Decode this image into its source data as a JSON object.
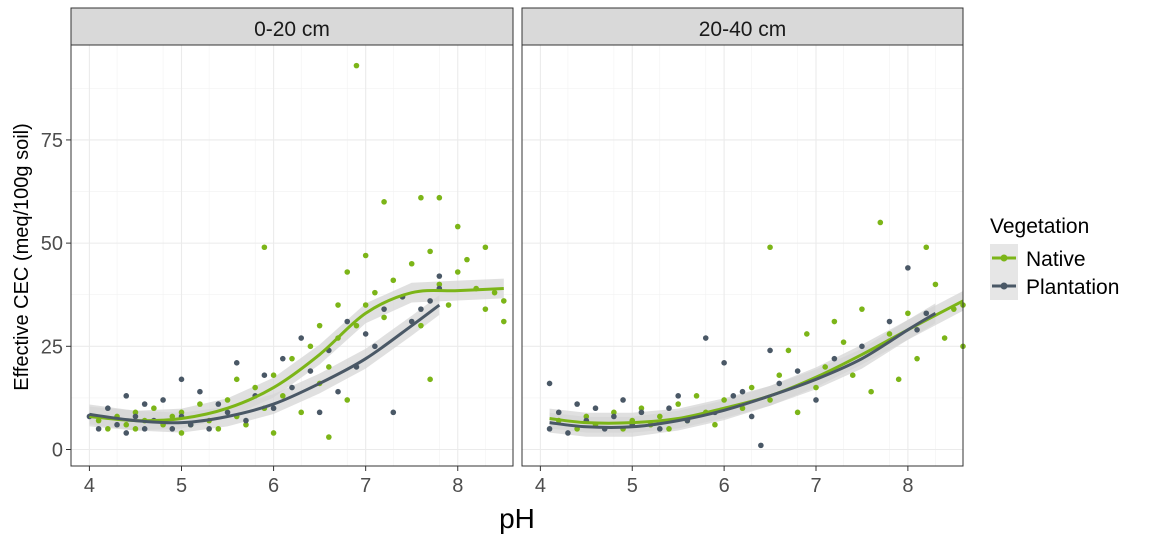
{
  "chart_data": {
    "type": "scatter",
    "xlabel": "pH",
    "ylabel": "Effective CEC (meq/100g soil)",
    "xlim": [
      3.8,
      8.6
    ],
    "ylim": [
      -4,
      98
    ],
    "x_ticks": [
      4,
      5,
      6,
      7,
      8
    ],
    "y_ticks": [
      0,
      25,
      50,
      75
    ],
    "grid": true,
    "legend": {
      "title": "Vegetation",
      "position": "right",
      "entries": [
        "Native",
        "Plantation"
      ]
    },
    "colors": {
      "Native": "#7cb518",
      "Plantation": "#4a5866",
      "band": "#d6d6d6"
    },
    "panels": [
      {
        "strip": "0-20 cm",
        "series": [
          {
            "name": "Native",
            "points": [
              [
                4.1,
                7
              ],
              [
                4.2,
                5
              ],
              [
                4.3,
                8
              ],
              [
                4.4,
                6
              ],
              [
                4.5,
                9
              ],
              [
                4.5,
                5
              ],
              [
                4.6,
                7
              ],
              [
                4.7,
                10
              ],
              [
                4.8,
                6
              ],
              [
                4.9,
                8
              ],
              [
                5.0,
                4
              ],
              [
                5.0,
                9
              ],
              [
                5.1,
                6
              ],
              [
                5.2,
                11
              ],
              [
                5.3,
                7
              ],
              [
                5.4,
                5
              ],
              [
                5.5,
                12
              ],
              [
                5.6,
                8
              ],
              [
                5.6,
                17
              ],
              [
                5.7,
                6
              ],
              [
                5.8,
                15
              ],
              [
                5.9,
                49
              ],
              [
                5.9,
                10
              ],
              [
                6.0,
                4
              ],
              [
                6.0,
                18
              ],
              [
                6.1,
                13
              ],
              [
                6.2,
                22
              ],
              [
                6.3,
                9
              ],
              [
                6.4,
                25
              ],
              [
                6.5,
                16
              ],
              [
                6.5,
                30
              ],
              [
                6.6,
                20
              ],
              [
                6.6,
                3
              ],
              [
                6.7,
                27
              ],
              [
                6.7,
                35
              ],
              [
                6.8,
                12
              ],
              [
                6.8,
                43
              ],
              [
                6.9,
                93
              ],
              [
                6.9,
                30
              ],
              [
                7.0,
                35
              ],
              [
                7.0,
                47
              ],
              [
                7.1,
                38
              ],
              [
                7.2,
                60
              ],
              [
                7.2,
                32
              ],
              [
                7.3,
                41
              ],
              [
                7.4,
                37
              ],
              [
                7.5,
                45
              ],
              [
                7.6,
                61
              ],
              [
                7.6,
                30
              ],
              [
                7.7,
                17
              ],
              [
                7.7,
                48
              ],
              [
                7.8,
                61
              ],
              [
                7.8,
                40
              ],
              [
                7.9,
                35
              ],
              [
                8.0,
                54
              ],
              [
                8.0,
                43
              ],
              [
                8.1,
                46
              ],
              [
                8.2,
                39
              ],
              [
                8.3,
                49
              ],
              [
                8.3,
                34
              ],
              [
                8.4,
                38
              ],
              [
                8.5,
                31
              ],
              [
                8.5,
                36
              ]
            ],
            "smooth": [
              [
                4.0,
                8
              ],
              [
                4.5,
                7
              ],
              [
                5.0,
                7.5
              ],
              [
                5.5,
                10
              ],
              [
                6.0,
                15
              ],
              [
                6.5,
                23
              ],
              [
                7.0,
                33
              ],
              [
                7.5,
                38
              ],
              [
                8.0,
                38.5
              ],
              [
                8.5,
                39
              ]
            ]
          },
          {
            "name": "Plantation",
            "points": [
              [
                4.0,
                8
              ],
              [
                4.1,
                5
              ],
              [
                4.2,
                10
              ],
              [
                4.3,
                6
              ],
              [
                4.4,
                13
              ],
              [
                4.4,
                4
              ],
              [
                4.5,
                8
              ],
              [
                4.6,
                11
              ],
              [
                4.6,
                5
              ],
              [
                4.7,
                7
              ],
              [
                4.8,
                12
              ],
              [
                4.9,
                5
              ],
              [
                5.0,
                17
              ],
              [
                5.0,
                8
              ],
              [
                5.1,
                6
              ],
              [
                5.2,
                14
              ],
              [
                5.3,
                5
              ],
              [
                5.4,
                11
              ],
              [
                5.5,
                9
              ],
              [
                5.6,
                21
              ],
              [
                5.7,
                7
              ],
              [
                5.8,
                13
              ],
              [
                5.9,
                18
              ],
              [
                6.0,
                10
              ],
              [
                6.1,
                22
              ],
              [
                6.2,
                15
              ],
              [
                6.3,
                27
              ],
              [
                6.4,
                19
              ],
              [
                6.5,
                9
              ],
              [
                6.6,
                24
              ],
              [
                6.7,
                14
              ],
              [
                6.8,
                31
              ],
              [
                6.9,
                20
              ],
              [
                7.0,
                28
              ],
              [
                7.1,
                25
              ],
              [
                7.2,
                34
              ],
              [
                7.3,
                9
              ],
              [
                7.4,
                37
              ],
              [
                7.5,
                31
              ],
              [
                7.6,
                34
              ],
              [
                7.7,
                36
              ],
              [
                7.8,
                42
              ],
              [
                7.8,
                39
              ]
            ],
            "smooth": [
              [
                4.0,
                8.5
              ],
              [
                4.5,
                7
              ],
              [
                5.0,
                6.5
              ],
              [
                5.5,
                8
              ],
              [
                6.0,
                11
              ],
              [
                6.5,
                16
              ],
              [
                7.0,
                22
              ],
              [
                7.5,
                30
              ],
              [
                7.8,
                35
              ]
            ]
          }
        ]
      },
      {
        "strip": "20-40 cm",
        "series": [
          {
            "name": "Native",
            "points": [
              [
                4.2,
                7
              ],
              [
                4.4,
                5
              ],
              [
                4.5,
                8
              ],
              [
                4.6,
                6
              ],
              [
                4.8,
                9
              ],
              [
                4.9,
                5
              ],
              [
                5.0,
                7
              ],
              [
                5.1,
                10
              ],
              [
                5.2,
                6
              ],
              [
                5.3,
                8
              ],
              [
                5.4,
                5
              ],
              [
                5.5,
                11
              ],
              [
                5.6,
                7
              ],
              [
                5.7,
                13
              ],
              [
                5.8,
                9
              ],
              [
                5.9,
                6
              ],
              [
                6.0,
                12
              ],
              [
                6.2,
                10
              ],
              [
                6.3,
                15
              ],
              [
                6.5,
                49
              ],
              [
                6.5,
                12
              ],
              [
                6.6,
                18
              ],
              [
                6.7,
                24
              ],
              [
                6.8,
                9
              ],
              [
                6.9,
                28
              ],
              [
                7.0,
                15
              ],
              [
                7.1,
                20
              ],
              [
                7.2,
                31
              ],
              [
                7.3,
                26
              ],
              [
                7.4,
                18
              ],
              [
                7.5,
                34
              ],
              [
                7.6,
                14
              ],
              [
                7.7,
                55
              ],
              [
                7.8,
                28
              ],
              [
                7.9,
                17
              ],
              [
                8.0,
                33
              ],
              [
                8.1,
                22
              ],
              [
                8.2,
                49
              ],
              [
                8.3,
                40
              ],
              [
                8.4,
                27
              ],
              [
                8.5,
                34
              ],
              [
                8.6,
                25
              ],
              [
                8.6,
                35
              ]
            ],
            "smooth": [
              [
                4.1,
                7.5
              ],
              [
                4.5,
                6.5
              ],
              [
                5.0,
                6.5
              ],
              [
                5.5,
                7.5
              ],
              [
                6.0,
                10
              ],
              [
                6.5,
                13
              ],
              [
                7.0,
                17.5
              ],
              [
                7.5,
                23
              ],
              [
                8.0,
                29
              ],
              [
                8.6,
                36
              ]
            ]
          },
          {
            "name": "Plantation",
            "points": [
              [
                4.1,
                5
              ],
              [
                4.1,
                16
              ],
              [
                4.2,
                9
              ],
              [
                4.3,
                4
              ],
              [
                4.4,
                11
              ],
              [
                4.5,
                7
              ],
              [
                4.6,
                10
              ],
              [
                4.7,
                5
              ],
              [
                4.8,
                8
              ],
              [
                4.9,
                12
              ],
              [
                5.0,
                6
              ],
              [
                5.1,
                9
              ],
              [
                5.3,
                5
              ],
              [
                5.4,
                10
              ],
              [
                5.5,
                13
              ],
              [
                5.6,
                7
              ],
              [
                5.8,
                27
              ],
              [
                5.9,
                9
              ],
              [
                6.0,
                21
              ],
              [
                6.1,
                13
              ],
              [
                6.2,
                14
              ],
              [
                6.3,
                8
              ],
              [
                6.4,
                1
              ],
              [
                6.5,
                24
              ],
              [
                6.6,
                16
              ],
              [
                6.8,
                19
              ],
              [
                7.0,
                12
              ],
              [
                7.2,
                22
              ],
              [
                7.5,
                25
              ],
              [
                7.8,
                31
              ],
              [
                8.0,
                44
              ],
              [
                8.1,
                29
              ],
              [
                8.2,
                33
              ]
            ],
            "smooth": [
              [
                4.1,
                6.5
              ],
              [
                4.5,
                5.5
              ],
              [
                5.0,
                5.5
              ],
              [
                5.5,
                7
              ],
              [
                6.0,
                9.5
              ],
              [
                6.5,
                13
              ],
              [
                7.0,
                17
              ],
              [
                7.5,
                22
              ],
              [
                8.0,
                29
              ],
              [
                8.3,
                33
              ]
            ]
          }
        ]
      }
    ]
  }
}
